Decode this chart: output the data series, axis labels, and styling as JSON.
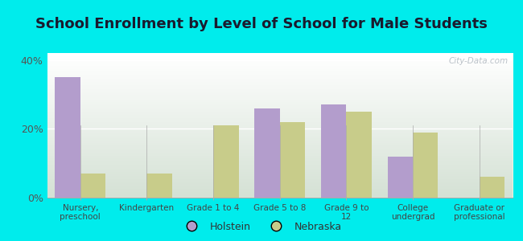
{
  "title": "School Enrollment by Level of School for Male Students",
  "categories": [
    "Nursery,\npreschool",
    "Kindergarten",
    "Grade 1 to 4",
    "Grade 5 to 8",
    "Grade 9 to\n12",
    "College\nundergrad",
    "Graduate or\nprofessional"
  ],
  "holstein": [
    35,
    0,
    0,
    26,
    27,
    12,
    0
  ],
  "nebraska": [
    7,
    7,
    21,
    22,
    25,
    19,
    6
  ],
  "holstein_color": "#b39dcc",
  "nebraska_color": "#c8cc8a",
  "background_outer": "#00ecec",
  "ylim": [
    0,
    42
  ],
  "yticks": [
    0,
    20,
    40
  ],
  "ytick_labels": [
    "0%",
    "20%",
    "40%"
  ],
  "legend_labels": [
    "Holstein",
    "Nebraska"
  ],
  "bar_width": 0.38,
  "title_fontsize": 13,
  "watermark": "City-Data.com"
}
